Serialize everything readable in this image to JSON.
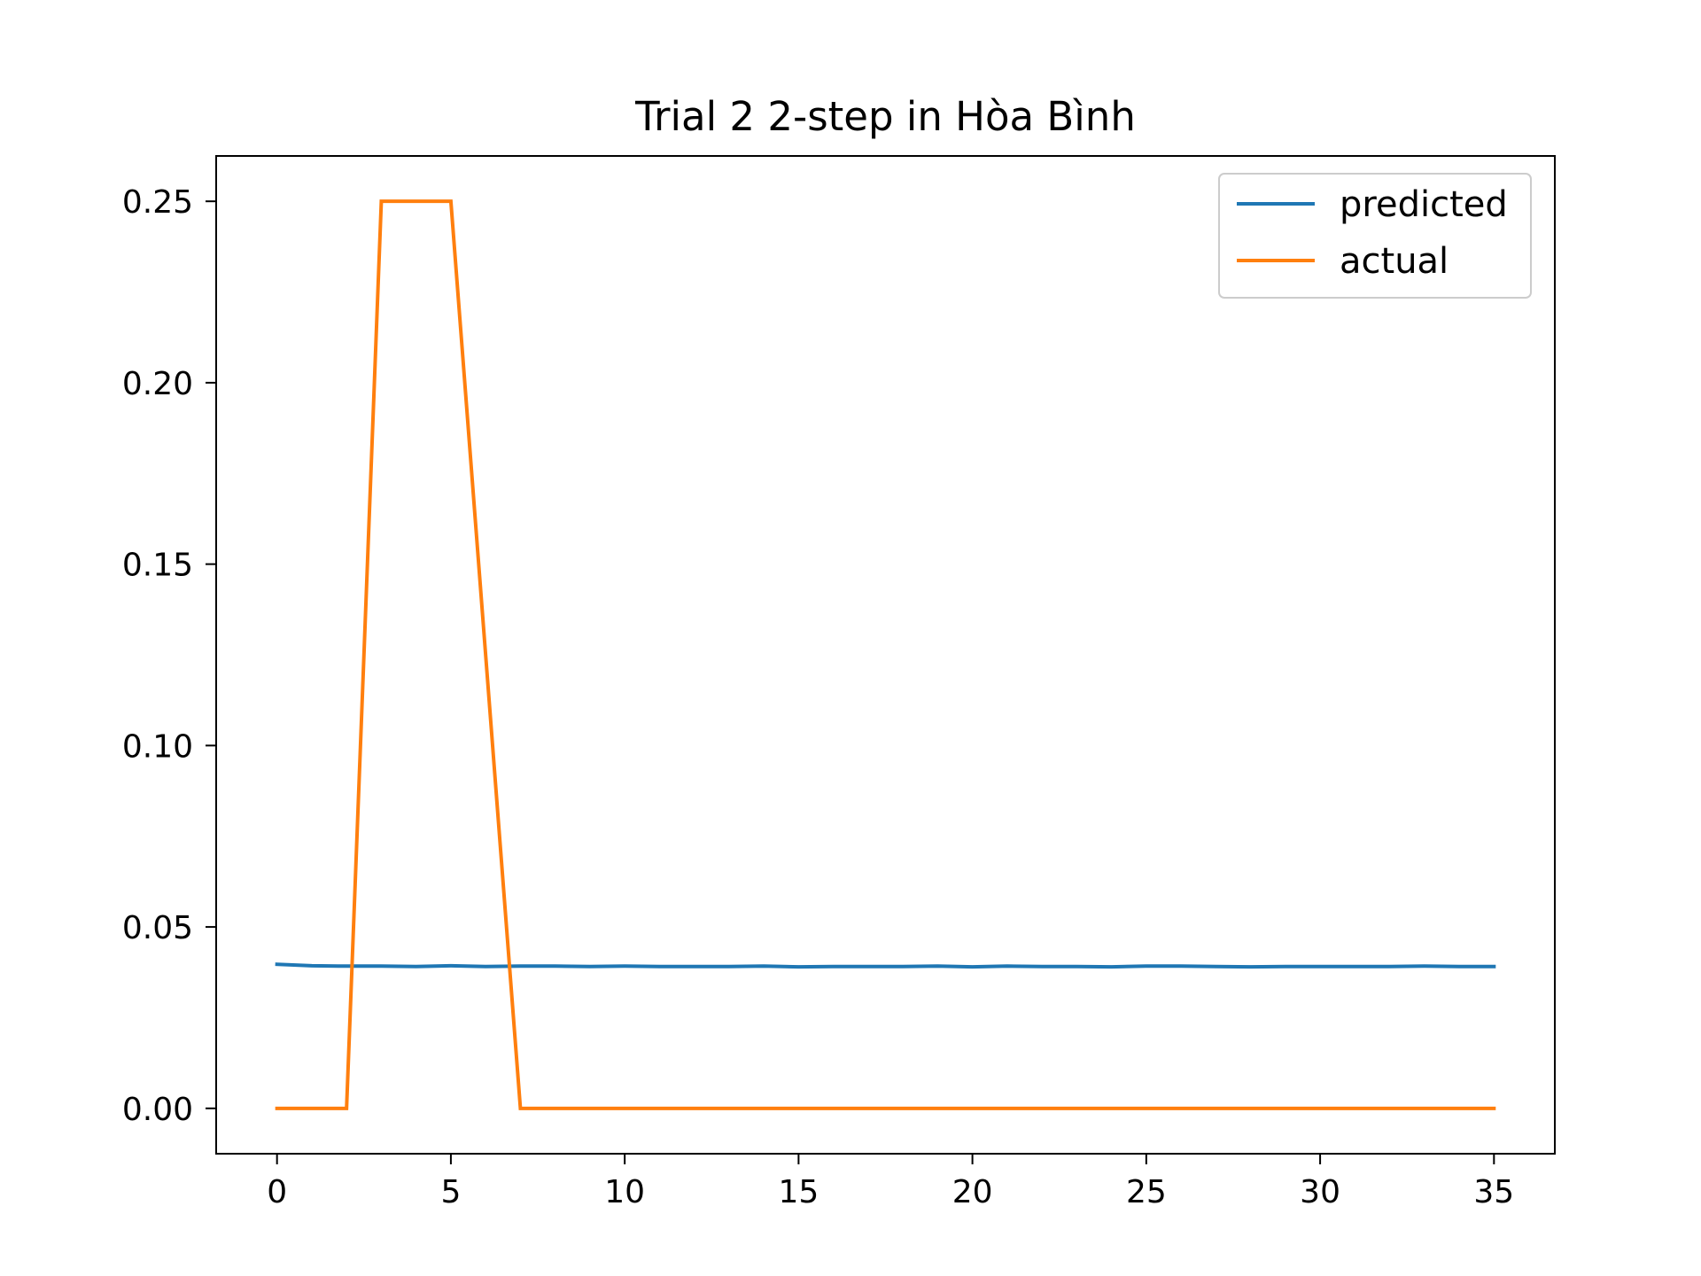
{
  "chart_data": {
    "type": "line",
    "title": "Trial 2 2-step in Hòa Bình",
    "xlabel": "",
    "ylabel": "",
    "xlim": [
      -1.75,
      36.75
    ],
    "ylim": [
      -0.0125,
      0.2625
    ],
    "xticks": [
      0,
      5,
      10,
      15,
      20,
      25,
      30,
      35
    ],
    "xtick_labels": [
      "0",
      "5",
      "10",
      "15",
      "20",
      "25",
      "30",
      "35"
    ],
    "yticks": [
      0.0,
      0.05,
      0.1,
      0.15,
      0.2,
      0.25
    ],
    "ytick_labels": [
      "0.00",
      "0.05",
      "0.10",
      "0.15",
      "0.20",
      "0.25"
    ],
    "grid": false,
    "legend_position": "top-right",
    "x": [
      0,
      1,
      2,
      3,
      4,
      5,
      6,
      7,
      8,
      9,
      10,
      11,
      12,
      13,
      14,
      15,
      16,
      17,
      18,
      19,
      20,
      21,
      22,
      23,
      24,
      25,
      26,
      27,
      28,
      29,
      30,
      31,
      32,
      33,
      34,
      35
    ],
    "series": [
      {
        "name": "predicted",
        "color": "#1f77b4",
        "values": [
          0.0397,
          0.0393,
          0.0392,
          0.0392,
          0.0391,
          0.0393,
          0.0391,
          0.0392,
          0.0392,
          0.0391,
          0.0392,
          0.0391,
          0.0391,
          0.0391,
          0.0392,
          0.039,
          0.0391,
          0.0391,
          0.0391,
          0.0392,
          0.039,
          0.0392,
          0.0391,
          0.0391,
          0.039,
          0.0392,
          0.0392,
          0.0391,
          0.039,
          0.0391,
          0.0391,
          0.0391,
          0.0391,
          0.0392,
          0.0391,
          0.0391
        ]
      },
      {
        "name": "actual",
        "color": "#ff7f0e",
        "values": [
          0,
          0,
          0,
          0.25,
          0.25,
          0.25,
          0.125,
          0,
          0,
          0,
          0,
          0,
          0,
          0,
          0,
          0,
          0,
          0,
          0,
          0,
          0,
          0,
          0,
          0,
          0,
          0,
          0,
          0,
          0,
          0,
          0,
          0,
          0,
          0,
          0,
          0
        ]
      }
    ]
  }
}
